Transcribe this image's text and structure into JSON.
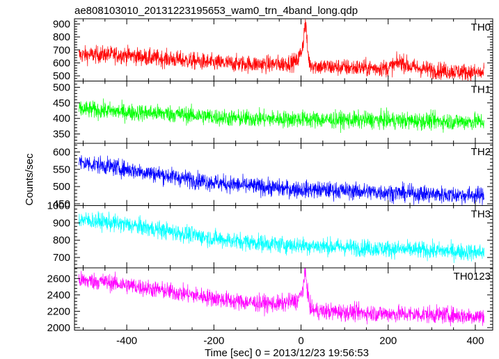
{
  "chart_data": {
    "type": "line",
    "title": "ae808103010_20131223195653_wam0_trn_4band_long.qdp",
    "xlabel": "Time [sec] 0 = 2013/12/23 19:56:53",
    "ylabel": "Counts/sec",
    "xlim": [
      -520,
      440
    ],
    "xticks": [
      -400,
      -200,
      0,
      200,
      400
    ],
    "grid": false,
    "panels": [
      {
        "name": "TH0",
        "color": "#ff0000",
        "ylim": [
          460,
          940
        ],
        "yticks": [
          500,
          600,
          700,
          800,
          900
        ],
        "x": [
          -510,
          -450,
          -400,
          -350,
          -300,
          -250,
          -200,
          -150,
          -100,
          -50,
          -10,
          0,
          5,
          10,
          15,
          20,
          30,
          50,
          100,
          150,
          200,
          230,
          250,
          300,
          350,
          400,
          420
        ],
        "y": [
          660,
          665,
          660,
          640,
          630,
          615,
          600,
          595,
          590,
          590,
          610,
          680,
          760,
          920,
          700,
          590,
          580,
          570,
          565,
          560,
          560,
          610,
          570,
          545,
          535,
          525,
          520
        ]
      },
      {
        "name": "TH1",
        "color": "#00ff00",
        "ylim": [
          320,
          520
        ],
        "yticks": [
          350,
          400,
          450,
          500
        ],
        "x": [
          -510,
          -450,
          -400,
          -350,
          -300,
          -250,
          -200,
          -150,
          -100,
          -50,
          0,
          50,
          100,
          150,
          200,
          250,
          300,
          350,
          400,
          420
        ],
        "y": [
          430,
          425,
          420,
          418,
          415,
          410,
          405,
          400,
          400,
          398,
          398,
          396,
          395,
          395,
          394,
          392,
          392,
          390,
          390,
          390
        ]
      },
      {
        "name": "TH2",
        "color": "#0000ff",
        "ylim": [
          445,
          625
        ],
        "yticks": [
          450,
          500,
          550,
          600
        ],
        "x": [
          -510,
          -450,
          -400,
          -350,
          -300,
          -250,
          -200,
          -150,
          -100,
          -50,
          0,
          50,
          100,
          150,
          200,
          250,
          300,
          350,
          400,
          420
        ],
        "y": [
          570,
          560,
          550,
          540,
          530,
          520,
          512,
          505,
          500,
          495,
          492,
          490,
          488,
          485,
          483,
          480,
          478,
          476,
          475,
          474
        ]
      },
      {
        "name": "TH3",
        "color": "#00ffff",
        "ylim": [
          640,
          1000
        ],
        "yticks": [
          700,
          800,
          900,
          1000
        ],
        "x": [
          -510,
          -450,
          -400,
          -350,
          -300,
          -250,
          -200,
          -150,
          -100,
          -50,
          0,
          50,
          100,
          150,
          200,
          250,
          300,
          350,
          400,
          420
        ],
        "y": [
          920,
          905,
          890,
          870,
          850,
          830,
          810,
          795,
          785,
          775,
          770,
          765,
          760,
          755,
          750,
          745,
          740,
          735,
          730,
          730
        ]
      },
      {
        "name": "TH0123",
        "color": "#ff00ff",
        "ylim": [
          1970,
          2730
        ],
        "yticks": [
          2000,
          2200,
          2400,
          2600
        ],
        "x": [
          -510,
          -450,
          -400,
          -350,
          -300,
          -250,
          -200,
          -150,
          -100,
          -50,
          -10,
          0,
          5,
          10,
          15,
          20,
          30,
          50,
          100,
          150,
          200,
          250,
          300,
          350,
          400,
          420
        ],
        "y": [
          2580,
          2560,
          2520,
          2480,
          2440,
          2400,
          2360,
          2320,
          2300,
          2290,
          2330,
          2400,
          2500,
          2680,
          2450,
          2250,
          2210,
          2200,
          2190,
          2180,
          2170,
          2165,
          2160,
          2150,
          2140,
          2135
        ]
      }
    ]
  }
}
